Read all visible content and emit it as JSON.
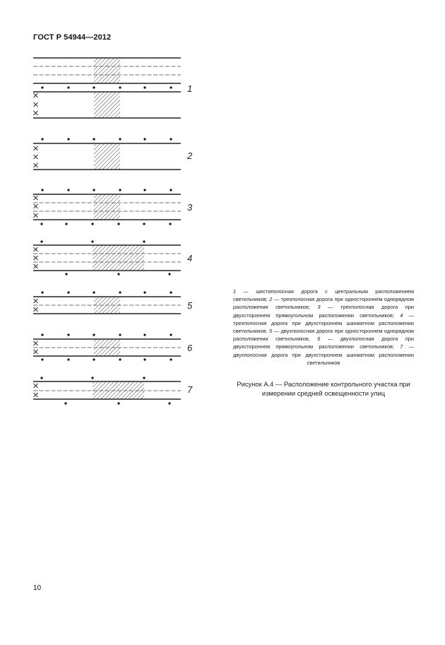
{
  "header": {
    "title": "ГОСТ Р 54944—2012"
  },
  "figure": {
    "diagram_labels": [
      "1",
      "2",
      "3",
      "4",
      "5",
      "6",
      "7"
    ],
    "legend": [
      {
        "num": "1",
        "text": " — шестиполосная дорога с центральным расположением светильников; "
      },
      {
        "num": "2",
        "text": " — трехполосная дорога при одностороннем однорядном расположении светильников; "
      },
      {
        "num": "3",
        "text": " — трехполосная дорога при двухстороннем прямоугольном расположении светильников; "
      },
      {
        "num": "4",
        "text": " — трехполосная дорога при двухстороннем шахматном расположении светильников. "
      },
      {
        "num": "5",
        "text": " — двухполосная дорога при одностороннем однорядном расположении светильников, "
      },
      {
        "num": "6",
        "text": " — двухполосная дорога при двухстороннем прямоугольном расположении светильников; "
      },
      {
        "num": "7",
        "text": " — двухполосная дорога при двухстороннем шахматном расположении светильников"
      }
    ],
    "caption": "Рисунок А.4 — Расположение контрольного участка при измерении средней освещенности улиц"
  },
  "page_number": "10"
}
